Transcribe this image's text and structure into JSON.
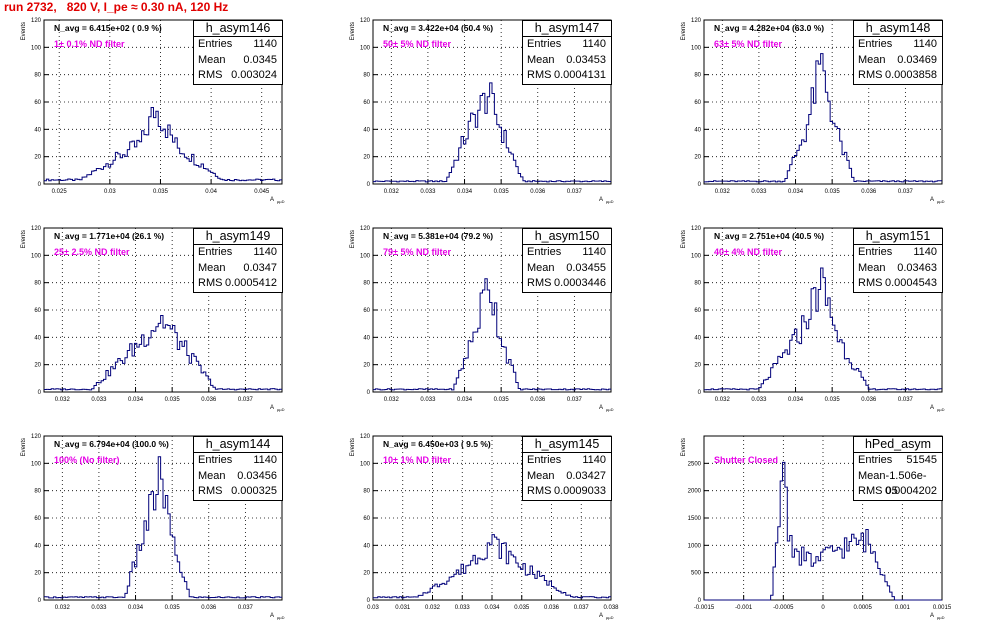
{
  "title": "run 2732,   820 V, I_pe ≈ 0.30 nA, 120 Hz",
  "y_axis_label": "Events",
  "x_axis_label": "A",
  "x_axis_sub": "µµD",
  "colors": {
    "run_title": "#e00000",
    "histogram": "#00007a",
    "filter_label": "#e600e6"
  },
  "chart_data": [
    {
      "type": "histogram",
      "name": "h_asym146",
      "stats": {
        "entries": "1140",
        "mean": "0.0345",
        "rms": "0.003024"
      },
      "n_avg": "N_avg = 6.415e+02 ( 0.9 %)",
      "filter": "1± 0.1% ND filter",
      "xlim": [
        0.0235,
        0.047
      ],
      "ylim": [
        0,
        120
      ],
      "yticks": [
        "0",
        "20",
        "40",
        "60",
        "80",
        "100",
        "120"
      ],
      "xticks": [
        {
          "v": 0.025,
          "label": "0.025"
        },
        {
          "v": 0.03,
          "label": "0.03"
        },
        {
          "v": 0.035,
          "label": "0.035"
        },
        {
          "v": 0.04,
          "label": "0.04"
        },
        {
          "v": 0.045,
          "label": "0.045"
        }
      ],
      "x": [
        0.0271,
        0.0331,
        0.0345,
        0.0367,
        0.0412
      ],
      "y": [
        3,
        30,
        55,
        27,
        3
      ]
    },
    {
      "type": "histogram",
      "name": "h_asym147",
      "stats": {
        "entries": "1140",
        "mean": "0.03453",
        "rms": "0.0004131"
      },
      "n_avg": "N_avg = 3.422e+04 (50.4 %)",
      "filter": "50± 5% ND filter",
      "xlim": [
        0.0315,
        0.038
      ],
      "ylim": [
        0,
        120
      ],
      "yticks": [
        "0",
        "20",
        "40",
        "60",
        "80",
        "100",
        "120"
      ],
      "xticks": [
        {
          "v": 0.032,
          "label": "0.032"
        },
        {
          "v": 0.033,
          "label": "0.033"
        },
        {
          "v": 0.034,
          "label": "0.034"
        },
        {
          "v": 0.035,
          "label": "0.035"
        },
        {
          "v": 0.036,
          "label": "0.036"
        },
        {
          "v": 0.037,
          "label": "0.037"
        }
      ],
      "x": [
        0.0335,
        0.0342,
        0.03465,
        0.035,
        0.0356
      ],
      "y": [
        2,
        45,
        66,
        40,
        2
      ]
    },
    {
      "type": "histogram",
      "name": "h_asym148",
      "stats": {
        "entries": "1140",
        "mean": "0.03469",
        "rms": "0.0003858"
      },
      "n_avg": "N_avg = 4.282e+04 (63.0 %)",
      "filter": "63± 5% ND filter",
      "xlim": [
        0.0315,
        0.038
      ],
      "ylim": [
        0,
        120
      ],
      "yticks": [
        "0",
        "20",
        "40",
        "60",
        "80",
        "100",
        "120"
      ],
      "xticks": [
        {
          "v": 0.032,
          "label": "0.032"
        },
        {
          "v": 0.033,
          "label": "0.033"
        },
        {
          "v": 0.034,
          "label": "0.034"
        },
        {
          "v": 0.035,
          "label": "0.035"
        },
        {
          "v": 0.036,
          "label": "0.036"
        },
        {
          "v": 0.037,
          "label": "0.037"
        }
      ],
      "x": [
        0.0337,
        0.0343,
        0.0347,
        0.0351,
        0.0356
      ],
      "y": [
        2,
        40,
        88,
        40,
        2
      ]
    },
    {
      "type": "histogram",
      "name": "h_asym149",
      "stats": {
        "entries": "1140",
        "mean": "0.0347",
        "rms": "0.0005412"
      },
      "n_avg": "N_avg = 1.771e+04 (26.1 %)",
      "filter": "25± 2.5% ND filter",
      "xlim": [
        0.0315,
        0.038
      ],
      "ylim": [
        0,
        120
      ],
      "yticks": [
        "0",
        "20",
        "40",
        "60",
        "80",
        "100",
        "120"
      ],
      "xticks": [
        {
          "v": 0.032,
          "label": "0.032"
        },
        {
          "v": 0.033,
          "label": "0.033"
        },
        {
          "v": 0.034,
          "label": "0.034"
        },
        {
          "v": 0.035,
          "label": "0.035"
        },
        {
          "v": 0.036,
          "label": "0.036"
        },
        {
          "v": 0.037,
          "label": "0.037"
        }
      ],
      "x": [
        0.0328,
        0.034,
        0.0347,
        0.0353,
        0.0362
      ],
      "y": [
        2,
        33,
        54,
        33,
        2
      ]
    },
    {
      "type": "histogram",
      "name": "h_asym150",
      "stats": {
        "entries": "1140",
        "mean": "0.03455",
        "rms": "0.0003446"
      },
      "n_avg": "N_avg = 5.381e+04 (79.2 %)",
      "filter": "79± 5% ND filter",
      "xlim": [
        0.0315,
        0.038
      ],
      "ylim": [
        0,
        120
      ],
      "yticks": [
        "0",
        "20",
        "40",
        "60",
        "80",
        "100",
        "120"
      ],
      "xticks": [
        {
          "v": 0.032,
          "label": "0.032"
        },
        {
          "v": 0.033,
          "label": "0.033"
        },
        {
          "v": 0.034,
          "label": "0.034"
        },
        {
          "v": 0.035,
          "label": "0.035"
        },
        {
          "v": 0.036,
          "label": "0.036"
        },
        {
          "v": 0.037,
          "label": "0.037"
        }
      ],
      "x": [
        0.0337,
        0.0343,
        0.03465,
        0.035,
        0.0355
      ],
      "y": [
        2,
        45,
        83,
        40,
        2
      ]
    },
    {
      "type": "histogram",
      "name": "h_asym151",
      "stats": {
        "entries": "1140",
        "mean": "0.03463",
        "rms": "0.0004543"
      },
      "n_avg": "N_avg = 2.751e+04 (40.5 %)",
      "filter": "40± 4% ND filter",
      "xlim": [
        0.0315,
        0.038
      ],
      "ylim": [
        0,
        120
      ],
      "yticks": [
        "0",
        "20",
        "40",
        "60",
        "80",
        "100",
        "120"
      ],
      "xticks": [
        {
          "v": 0.032,
          "label": "0.032"
        },
        {
          "v": 0.033,
          "label": "0.033"
        },
        {
          "v": 0.034,
          "label": "0.034"
        },
        {
          "v": 0.035,
          "label": "0.035"
        },
        {
          "v": 0.036,
          "label": "0.036"
        },
        {
          "v": 0.037,
          "label": "0.037"
        }
      ],
      "x": [
        0.033,
        0.0341,
        0.0347,
        0.0352,
        0.036
      ],
      "y": [
        2,
        42,
        80,
        38,
        2
      ]
    },
    {
      "type": "histogram",
      "name": "h_asym144",
      "stats": {
        "entries": "1140",
        "mean": "0.03456",
        "rms": "0.000325"
      },
      "n_avg": "N_avg = 6.794e+04 (100.0 %)",
      "filter": "100% (No filter)",
      "xlim": [
        0.0315,
        0.038
      ],
      "ylim": [
        0,
        120
      ],
      "yticks": [
        "0",
        "20",
        "40",
        "60",
        "80",
        "100",
        "120"
      ],
      "xticks": [
        {
          "v": 0.032,
          "label": "0.032"
        },
        {
          "v": 0.033,
          "label": "0.033"
        },
        {
          "v": 0.034,
          "label": "0.034"
        },
        {
          "v": 0.035,
          "label": "0.035"
        },
        {
          "v": 0.036,
          "label": "0.036"
        },
        {
          "v": 0.037,
          "label": "0.037"
        }
      ],
      "x": [
        0.0337,
        0.0343,
        0.0347,
        0.035,
        0.0355
      ],
      "y": [
        2,
        55,
        92,
        42,
        2
      ]
    },
    {
      "type": "histogram",
      "name": "h_asym145",
      "stats": {
        "entries": "1140",
        "mean": "0.03427",
        "rms": "0.0009033"
      },
      "n_avg": "N_avg = 6.450e+03 ( 9.5 %)",
      "filter": "10± 1% ND filter",
      "xlim": [
        0.03,
        0.038
      ],
      "ylim": [
        0,
        120
      ],
      "yticks": [
        "0",
        "20",
        "40",
        "60",
        "80",
        "100",
        "120"
      ],
      "xticks": [
        {
          "v": 0.03,
          "label": "0.03"
        },
        {
          "v": 0.031,
          "label": "0.031"
        },
        {
          "v": 0.032,
          "label": "0.032"
        },
        {
          "v": 0.033,
          "label": "0.033"
        },
        {
          "v": 0.034,
          "label": "0.034"
        },
        {
          "v": 0.035,
          "label": "0.035"
        },
        {
          "v": 0.036,
          "label": "0.036"
        },
        {
          "v": 0.037,
          "label": "0.037"
        },
        {
          "v": 0.038,
          "label": "0.038"
        }
      ],
      "x": [
        0.0315,
        0.033,
        0.034,
        0.035,
        0.0367
      ],
      "y": [
        2,
        22,
        43,
        25,
        2
      ]
    },
    {
      "type": "histogram",
      "name": "hPed_asym",
      "stats": {
        "entries": "51545",
        "mean": "-1.506e-05",
        "rms": "0.0004202"
      },
      "n_avg": "",
      "filter": "Shutter Closed",
      "xlim": [
        -0.0015,
        0.0015
      ],
      "ylim": [
        0,
        3000
      ],
      "yticks": [
        "0",
        "500",
        "1000",
        "1500",
        "2000",
        "2500"
      ],
      "xticks": [
        {
          "v": -0.0015,
          "label": "-0.0015"
        },
        {
          "v": -0.001,
          "label": "-0.001"
        },
        {
          "v": -0.0005,
          "label": "-0.0005"
        },
        {
          "v": 0,
          "label": "0"
        },
        {
          "v": 0.0005,
          "label": "0.0005"
        },
        {
          "v": 0.001,
          "label": "0.001"
        },
        {
          "v": 0.0015,
          "label": "0.0015"
        }
      ],
      "x": [
        -0.00065,
        -0.00055,
        -0.0005,
        -0.00045,
        -0.00035,
        -0.0001,
        0.0002,
        0.00055,
        0.0008,
        0.0009
      ],
      "y": [
        0,
        1500,
        2900,
        1400,
        850,
        700,
        950,
        1100,
        400,
        0
      ]
    }
  ]
}
